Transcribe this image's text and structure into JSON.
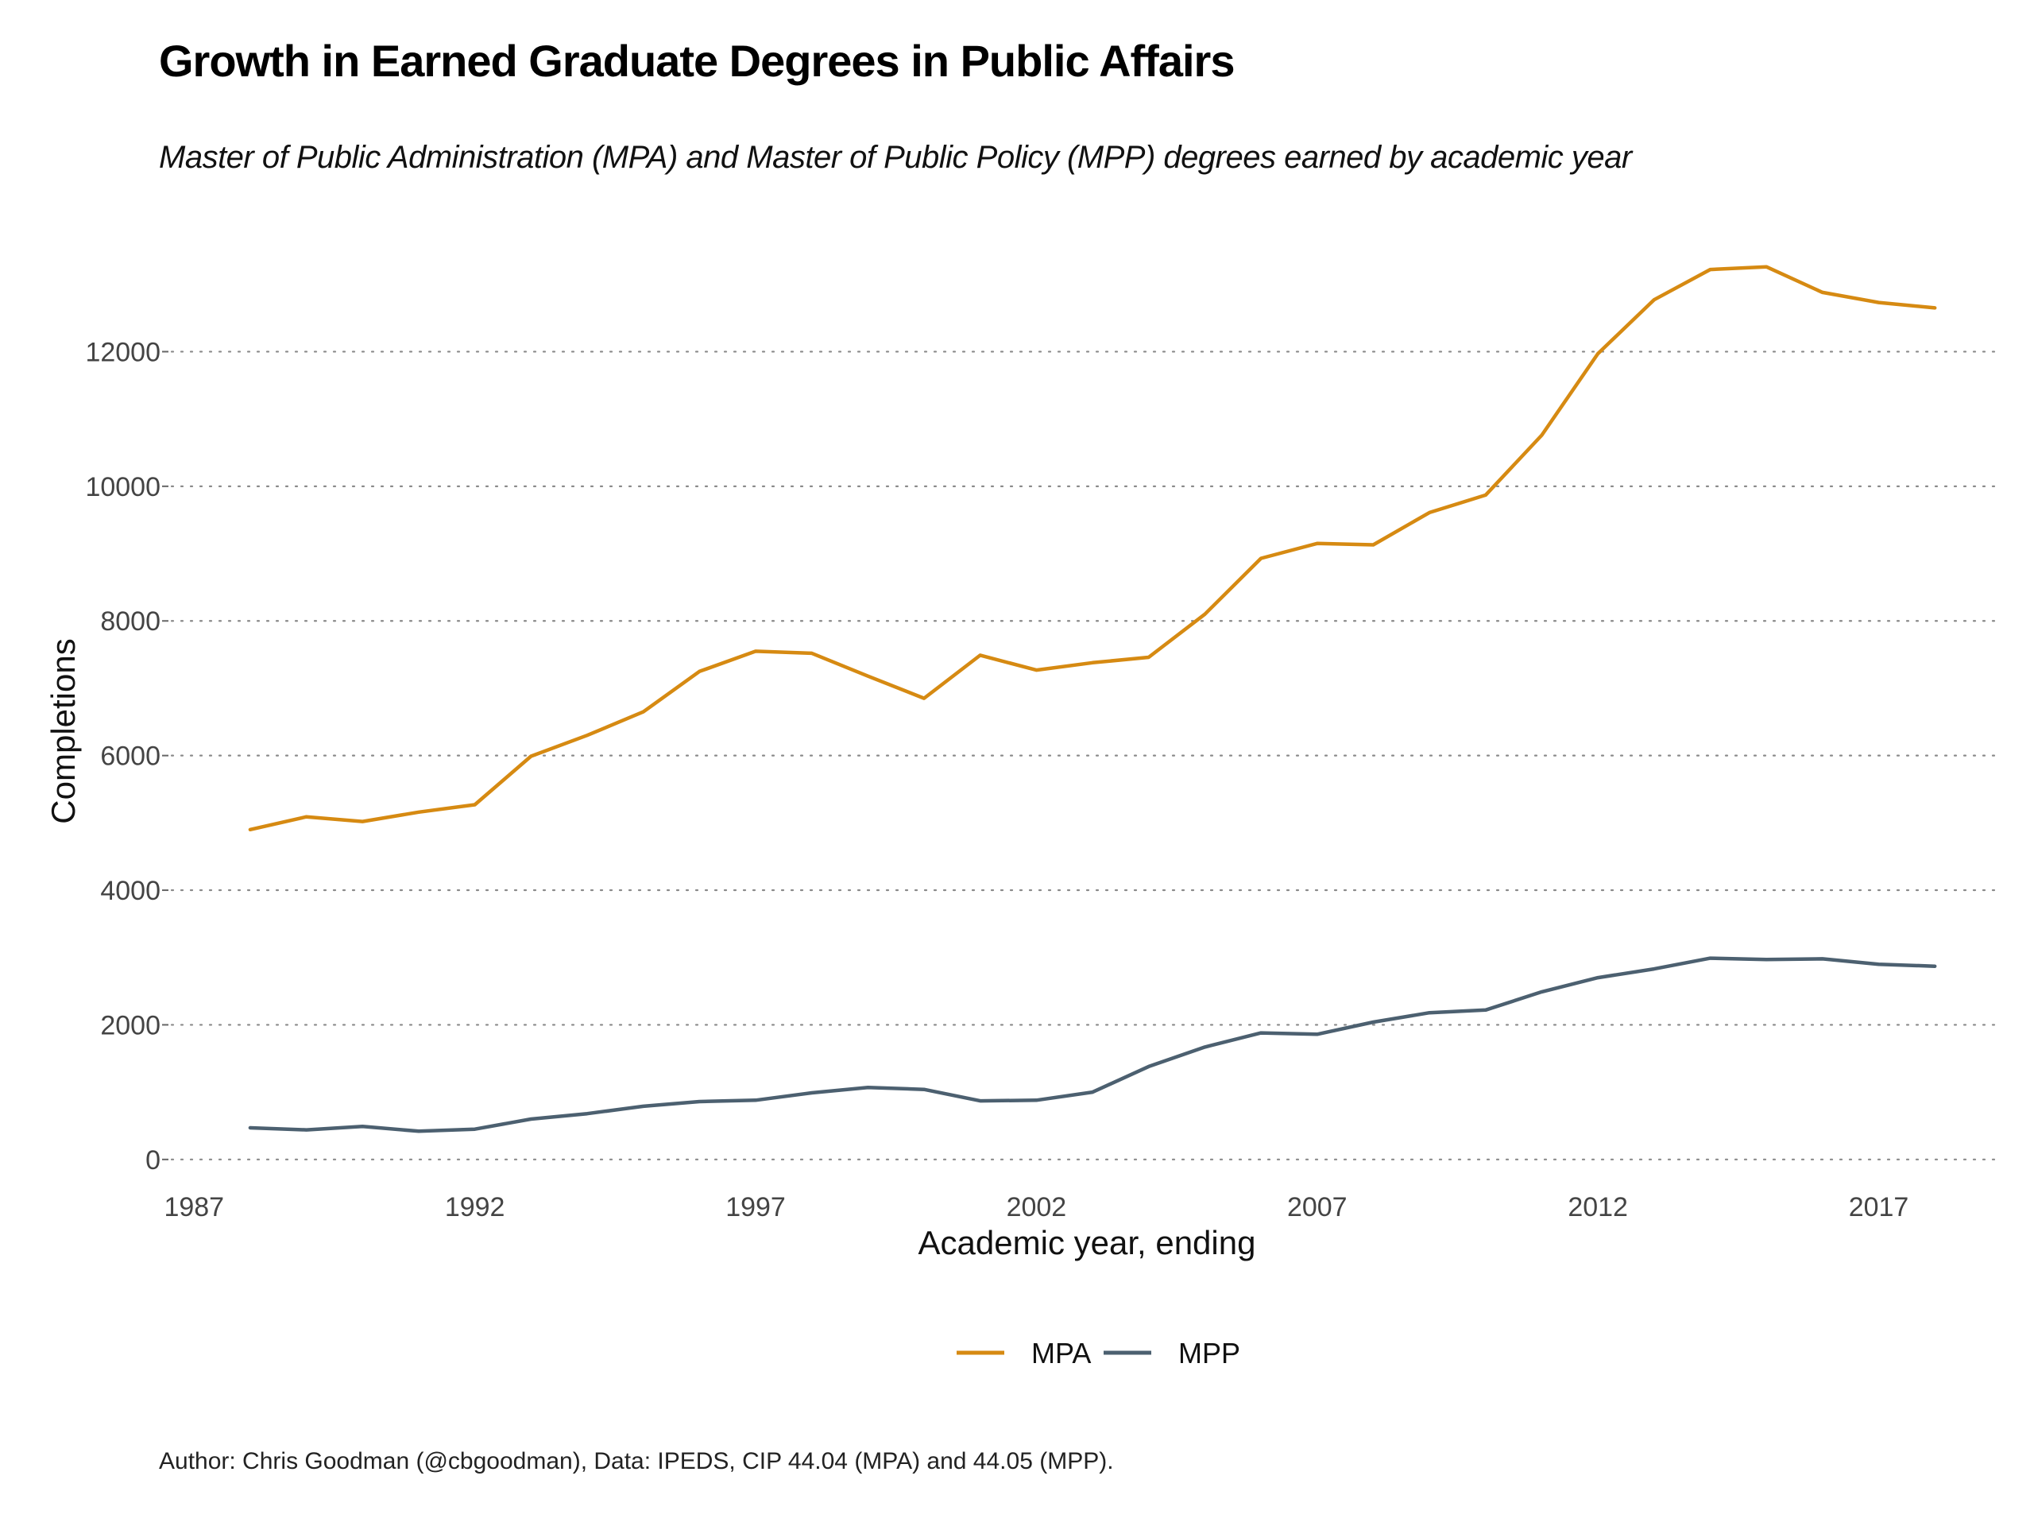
{
  "chart_data": {
    "type": "line",
    "title": "Growth in Earned Graduate Degrees in Public Affairs",
    "subtitle": "Master of Public Administration (MPA) and Master of Public Policy (MPP) degrees earned by academic year",
    "xlabel": "Academic year, ending",
    "ylabel": "Completions",
    "caption": "Author: Chris Goodman (@cbgoodman), Data: IPEDS, CIP 44.04 (MPA) and 44.05 (MPP).",
    "xlim": [
      1986.6,
      2019.2
    ],
    "ylim": [
      -250,
      13800
    ],
    "x_ticks": [
      1987,
      1992,
      1997,
      2002,
      2007,
      2012,
      2017
    ],
    "x_tick_labels": [
      "1987",
      "1992",
      "1997",
      "2002",
      "2007",
      "2012",
      "2017"
    ],
    "y_ticks": [
      0,
      2000,
      4000,
      6000,
      8000,
      10000,
      12000
    ],
    "y_tick_labels": [
      "0",
      "2000",
      "4000",
      "6000",
      "8000",
      "10000",
      "12000"
    ],
    "grid": "horizontal dotted",
    "legend_position": "bottom",
    "x": [
      1988,
      1989,
      1990,
      1991,
      1992,
      1993,
      1994,
      1995,
      1996,
      1997,
      1998,
      1999,
      2000,
      2001,
      2002,
      2003,
      2004,
      2005,
      2006,
      2007,
      2008,
      2009,
      2010,
      2011,
      2012,
      2013,
      2014,
      2015,
      2016,
      2017,
      2018
    ],
    "series": [
      {
        "name": "MPA",
        "color": "#D68A12",
        "values": [
          4900,
          5090,
          5020,
          5160,
          5270,
          5990,
          6300,
          6650,
          7250,
          7550,
          7520,
          7180,
          6850,
          7490,
          7270,
          7380,
          7460,
          8100,
          8930,
          9150,
          9130,
          9610,
          9870,
          10760,
          11970,
          12770,
          13220,
          13260,
          12880,
          12730,
          12650
        ]
      },
      {
        "name": "MPP",
        "color": "#4C6070",
        "values": [
          470,
          440,
          490,
          420,
          450,
          600,
          680,
          790,
          860,
          880,
          990,
          1070,
          1040,
          870,
          880,
          1000,
          1380,
          1670,
          1880,
          1860,
          2040,
          2180,
          2220,
          2490,
          2700,
          2830,
          2990,
          2970,
          2980,
          2900,
          2870
        ]
      }
    ]
  }
}
